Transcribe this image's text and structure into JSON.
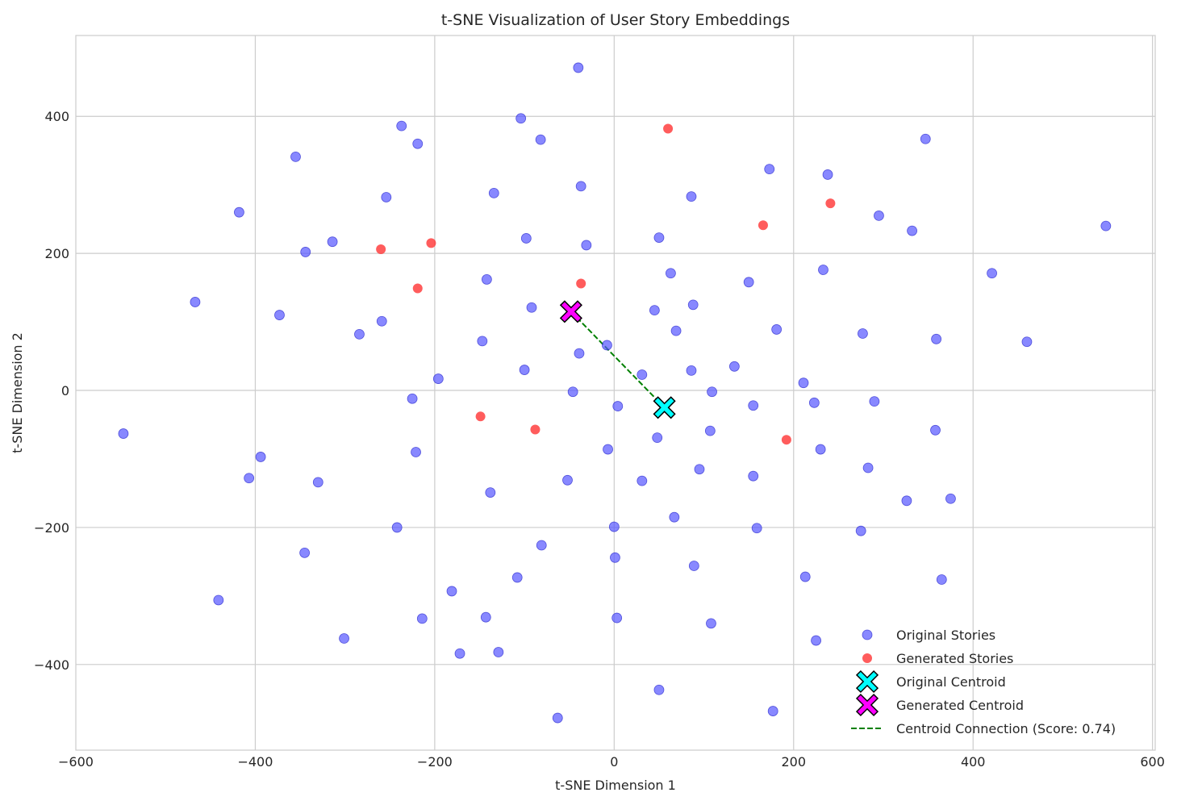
{
  "chart_data": {
    "type": "scatter",
    "title": "t-SNE Visualization of User Story Embeddings",
    "xlabel": "t-SNE Dimension 1",
    "ylabel": "t-SNE Dimension 2",
    "xlim": [
      -600,
      603
    ],
    "ylim": [
      -525,
      518
    ],
    "xticks": [
      -600,
      -400,
      -200,
      0,
      200,
      400,
      600
    ],
    "yticks": [
      -400,
      -200,
      0,
      200,
      400
    ],
    "grid": true,
    "legend_position": "lower-right",
    "colors": {
      "original": "#5555ff",
      "generated": "#ff3333",
      "original_centroid": "#00ffff",
      "generated_centroid": "#ff00ff",
      "connection": "#008000"
    },
    "series": [
      {
        "name": "Original Stories",
        "marker": "circle",
        "points": [
          [
            -40,
            471
          ],
          [
            -104,
            397
          ],
          [
            -82,
            366
          ],
          [
            -237,
            386
          ],
          [
            -219,
            360
          ],
          [
            -355,
            341
          ],
          [
            -254,
            282
          ],
          [
            -134,
            288
          ],
          [
            -37,
            298
          ],
          [
            -418,
            260
          ],
          [
            -314,
            217
          ],
          [
            -344,
            202
          ],
          [
            -98,
            222
          ],
          [
            -31,
            212
          ],
          [
            -467,
            129
          ],
          [
            -373,
            110
          ],
          [
            -284,
            82
          ],
          [
            -259,
            101
          ],
          [
            -142,
            162
          ],
          [
            -92,
            121
          ],
          [
            -147,
            72
          ],
          [
            -39,
            54
          ],
          [
            -100,
            30
          ],
          [
            -196,
            17
          ],
          [
            -225,
            -12
          ],
          [
            -46,
            -2
          ],
          [
            -8,
            66
          ],
          [
            -547,
            -63
          ],
          [
            -394,
            -97
          ],
          [
            -407,
            -128
          ],
          [
            -330,
            -134
          ],
          [
            -221,
            -90
          ],
          [
            -138,
            -149
          ],
          [
            -52,
            -131
          ],
          [
            -7,
            -86
          ],
          [
            4,
            -23
          ],
          [
            31,
            23
          ],
          [
            45,
            117
          ],
          [
            50,
            223
          ],
          [
            63,
            171
          ],
          [
            69,
            87
          ],
          [
            86,
            29
          ],
          [
            86,
            283
          ],
          [
            88,
            125
          ],
          [
            48,
            -69
          ],
          [
            107,
            -59
          ],
          [
            109,
            -2
          ],
          [
            31,
            -132
          ],
          [
            95,
            -115
          ],
          [
            -242,
            -200
          ],
          [
            -345,
            -237
          ],
          [
            -441,
            -306
          ],
          [
            -301,
            -362
          ],
          [
            -214,
            -333
          ],
          [
            -181,
            -293
          ],
          [
            -172,
            -384
          ],
          [
            -143,
            -331
          ],
          [
            -129,
            -382
          ],
          [
            -108,
            -273
          ],
          [
            -81,
            -226
          ],
          [
            -63,
            -478
          ],
          [
            0,
            -199
          ],
          [
            1,
            -244
          ],
          [
            3,
            -332
          ],
          [
            67,
            -185
          ],
          [
            89,
            -256
          ],
          [
            108,
            -340
          ],
          [
            50,
            -437
          ],
          [
            134,
            35
          ],
          [
            150,
            158
          ],
          [
            155,
            -22
          ],
          [
            155,
            -125
          ],
          [
            159,
            -201
          ],
          [
            173,
            323
          ],
          [
            181,
            89
          ],
          [
            177,
            -468
          ],
          [
            213,
            -272
          ],
          [
            225,
            -365
          ],
          [
            211,
            11
          ],
          [
            223,
            -18
          ],
          [
            230,
            -86
          ],
          [
            233,
            176
          ],
          [
            238,
            315
          ],
          [
            277,
            83
          ],
          [
            275,
            -205
          ],
          [
            283,
            -113
          ],
          [
            290,
            -16
          ],
          [
            295,
            255
          ],
          [
            326,
            -161
          ],
          [
            332,
            233
          ],
          [
            347,
            367
          ],
          [
            359,
            75
          ],
          [
            358,
            -58
          ],
          [
            375,
            -158
          ],
          [
            365,
            -276
          ],
          [
            421,
            171
          ],
          [
            460,
            71
          ],
          [
            548,
            240
          ]
        ]
      },
      {
        "name": "Generated Stories",
        "marker": "circle",
        "points": [
          [
            60,
            382
          ],
          [
            -260,
            206
          ],
          [
            -204,
            215
          ],
          [
            -219,
            149
          ],
          [
            -37,
            156
          ],
          [
            166,
            241
          ],
          [
            241,
            273
          ],
          [
            -149,
            -38
          ],
          [
            -88,
            -57
          ],
          [
            192,
            -72
          ]
        ]
      }
    ],
    "centroids": [
      {
        "name": "Original Centroid",
        "x": 56,
        "y": -25
      },
      {
        "name": "Generated Centroid",
        "x": -48,
        "y": 115
      }
    ],
    "connection": {
      "name": "Centroid Connection (Score: 0.74)",
      "from": [
        -48,
        115
      ],
      "to": [
        56,
        -25
      ]
    }
  },
  "legend": {
    "items": [
      {
        "label": "Original Stories",
        "kind": "dot",
        "color": "#5555ff"
      },
      {
        "label": "Generated Stories",
        "kind": "dot",
        "color": "#ff3333"
      },
      {
        "label": "Original Centroid",
        "kind": "x",
        "color": "#00ffff"
      },
      {
        "label": "Generated Centroid",
        "kind": "x",
        "color": "#ff00ff"
      },
      {
        "label": "Centroid Connection (Score: 0.74)",
        "kind": "line",
        "color": "#008000"
      }
    ]
  }
}
